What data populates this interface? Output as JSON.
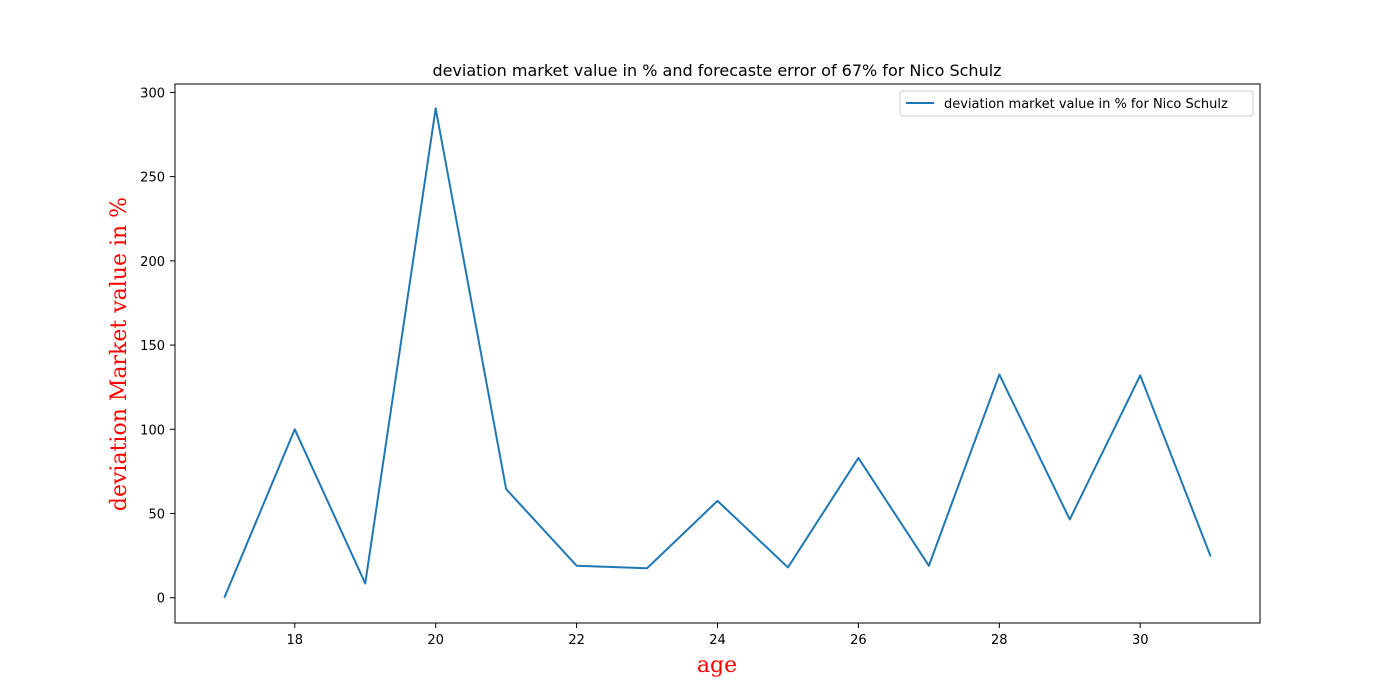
{
  "chart_data": {
    "type": "line",
    "title": "deviation market value in % and forecaste error of 67% for Nico Schulz",
    "xlabel": "age",
    "ylabel": "deviation Market value in %",
    "xlim": [
      16.3,
      31.7
    ],
    "ylim": [
      -15,
      305
    ],
    "x_ticks": [
      18,
      20,
      22,
      24,
      26,
      28,
      30
    ],
    "x_tick_labels": [
      "18",
      "20",
      "22",
      "24",
      "26",
      "28",
      "30"
    ],
    "y_ticks": [
      0,
      50,
      100,
      150,
      200,
      250,
      300
    ],
    "y_tick_labels": [
      "0",
      "50",
      "100",
      "150",
      "200",
      "250",
      "300"
    ],
    "grid": false,
    "legend_position": "top-right",
    "series": [
      {
        "name": "deviation market value in % for Nico Schulz",
        "color": "#1f77b4",
        "x": [
          17,
          18,
          19,
          20,
          21,
          22,
          23,
          24,
          25,
          26,
          27,
          28,
          29,
          30,
          31
        ],
        "y": [
          0,
          100,
          8.5,
          290.5,
          64.5,
          19,
          17.5,
          57.5,
          18,
          83,
          19,
          132.5,
          46.5,
          132,
          24.5
        ]
      }
    ],
    "label_color": "#ff0000"
  }
}
